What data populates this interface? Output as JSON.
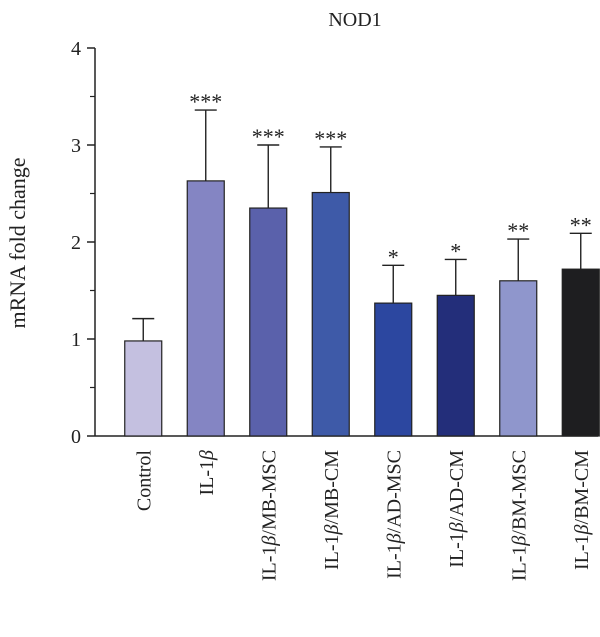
{
  "chart_data": {
    "type": "bar",
    "title": "NOD1",
    "ylabel": "mRNA fold change",
    "xlabel": "",
    "ylim": [
      0,
      4
    ],
    "yticks": [
      "0",
      "1",
      "2",
      "3",
      "4"
    ],
    "grid": false,
    "categories": [
      {
        "base": "Control",
        "beta": "",
        "suffix": ""
      },
      {
        "base": "IL-1",
        "beta": "β",
        "suffix": ""
      },
      {
        "base": "IL-1",
        "beta": "β",
        "suffix": "/MB-MSC"
      },
      {
        "base": "IL-1",
        "beta": "β",
        "suffix": "/MB-CM"
      },
      {
        "base": "IL-1",
        "beta": "β",
        "suffix": "/AD-MSC"
      },
      {
        "base": "IL-1",
        "beta": "β",
        "suffix": "/AD-CM"
      },
      {
        "base": "IL-1",
        "beta": "β",
        "suffix": "/BM-MSC"
      },
      {
        "base": "IL-1",
        "beta": "β",
        "suffix": "/BM-CM"
      }
    ],
    "values": [
      0.98,
      2.63,
      2.35,
      2.51,
      1.37,
      1.45,
      1.6,
      1.72
    ],
    "error_upper": [
      0.23,
      0.73,
      0.65,
      0.47,
      0.39,
      0.37,
      0.43,
      0.37
    ],
    "significance": [
      "",
      "***",
      "***",
      "***",
      "*",
      "*",
      "**",
      "**"
    ],
    "colors": [
      "#c4c0e0",
      "#8485c3",
      "#5a61ab",
      "#3e5aa8",
      "#2c47a0",
      "#232e7a",
      "#8f96cc",
      "#1e1e20"
    ]
  }
}
